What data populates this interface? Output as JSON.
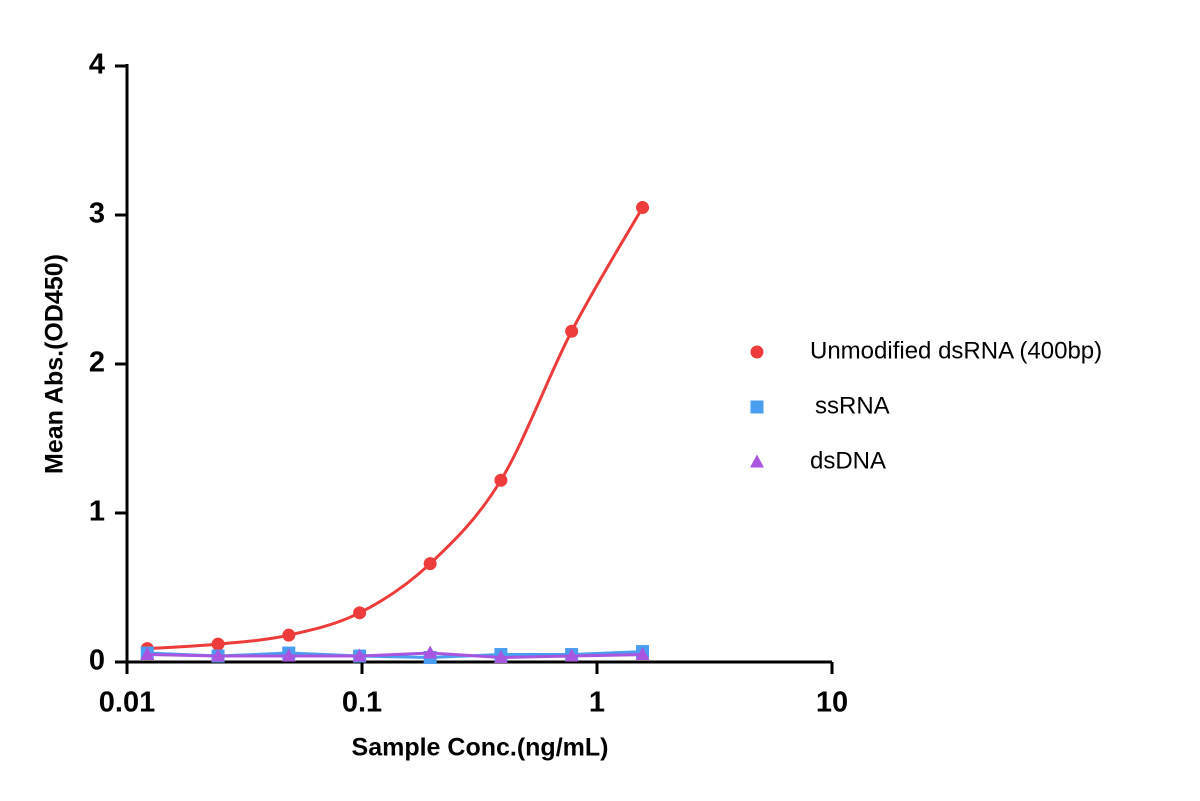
{
  "chart_data": {
    "type": "line",
    "x_label": "Sample Conc.(ng/mL)",
    "y_label": "Mean Abs.(OD450)",
    "x": [
      0.0122,
      0.0244,
      0.0488,
      0.0977,
      0.195,
      0.39,
      0.78,
      1.5625
    ],
    "xscale": "log",
    "xlim": [
      0.01,
      10
    ],
    "xticks": [
      0.01,
      0.1,
      1,
      10
    ],
    "ylim": [
      0,
      4
    ],
    "yticks": [
      0,
      1,
      2,
      3,
      4
    ],
    "legend": "right",
    "series": [
      {
        "name": "Unmodified dsRNA (400bp)",
        "color": "#ee3b3b",
        "marker": "circle",
        "smooth": true,
        "values": [
          0.09,
          0.12,
          0.18,
          0.33,
          0.66,
          1.22,
          2.22,
          3.05
        ]
      },
      {
        "name": "ssRNA",
        "color": "#4a9ef0",
        "marker": "square",
        "smooth": false,
        "values": [
          0.06,
          0.04,
          0.06,
          0.04,
          0.03,
          0.05,
          0.05,
          0.07
        ]
      },
      {
        "name": "dsDNA",
        "color": "#a855e0",
        "marker": "triangle",
        "smooth": false,
        "values": [
          0.05,
          0.04,
          0.04,
          0.04,
          0.06,
          0.03,
          0.04,
          0.05
        ]
      }
    ]
  }
}
